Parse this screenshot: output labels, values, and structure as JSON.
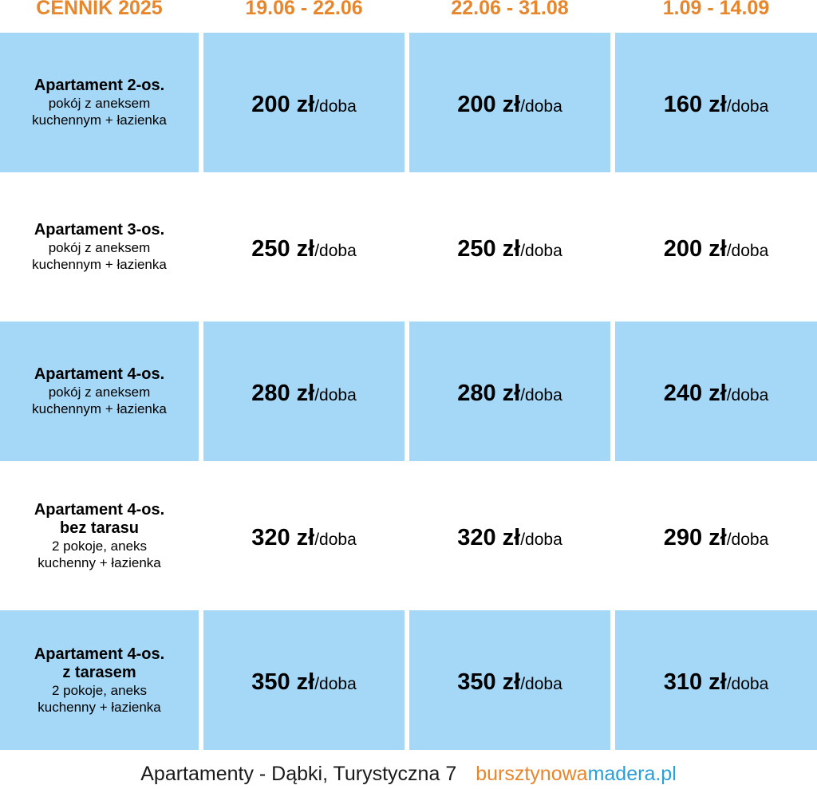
{
  "header": {
    "title": "CENNIK 2025",
    "periods": [
      "19.06 - 22.06",
      "22.06 - 31.08",
      "1.09 - 14.09"
    ]
  },
  "rows": [
    {
      "name_lines": [
        "Apartament 2-os."
      ],
      "desc_lines": [
        "pokój z aneksem",
        "kuchennym + łazienka"
      ],
      "prices": [
        "200 zł",
        "200 zł",
        "160 zł"
      ],
      "shaded": true
    },
    {
      "name_lines": [
        "Apartament 3-os."
      ],
      "desc_lines": [
        "pokój z aneksem",
        "kuchennym + łazienka"
      ],
      "prices": [
        "250 zł",
        "250 zł",
        "200 zł"
      ],
      "shaded": false
    },
    {
      "name_lines": [
        "Apartament 4-os."
      ],
      "desc_lines": [
        "pokój z aneksem",
        "kuchennym + łazienka"
      ],
      "prices": [
        "280 zł",
        "280 zł",
        "240 zł"
      ],
      "shaded": true
    },
    {
      "name_lines": [
        "Apartament 4-os.",
        "bez tarasu"
      ],
      "desc_lines": [
        "2 pokoje, aneks",
        "kuchenny + łazienka"
      ],
      "prices": [
        "320 zł",
        "320 zł",
        "290 zł"
      ],
      "shaded": false
    },
    {
      "name_lines": [
        "Apartament 4-os.",
        "z tarasem"
      ],
      "desc_lines": [
        "2 pokoje, aneks",
        "kuchenny + łazienka"
      ],
      "prices": [
        "350 zł",
        "350 zł",
        "310 zł"
      ],
      "shaded": true
    }
  ],
  "price_unit": "/doba",
  "footer": {
    "address": "Apartamenty - Dąbki, Turystyczna 7",
    "website_part1": "bursztynowa",
    "website_part2": "madera.pl"
  },
  "colors": {
    "accent_orange": "#e8862c",
    "cell_blue": "#a5d7f6",
    "link_blue": "#2a9fd8"
  }
}
